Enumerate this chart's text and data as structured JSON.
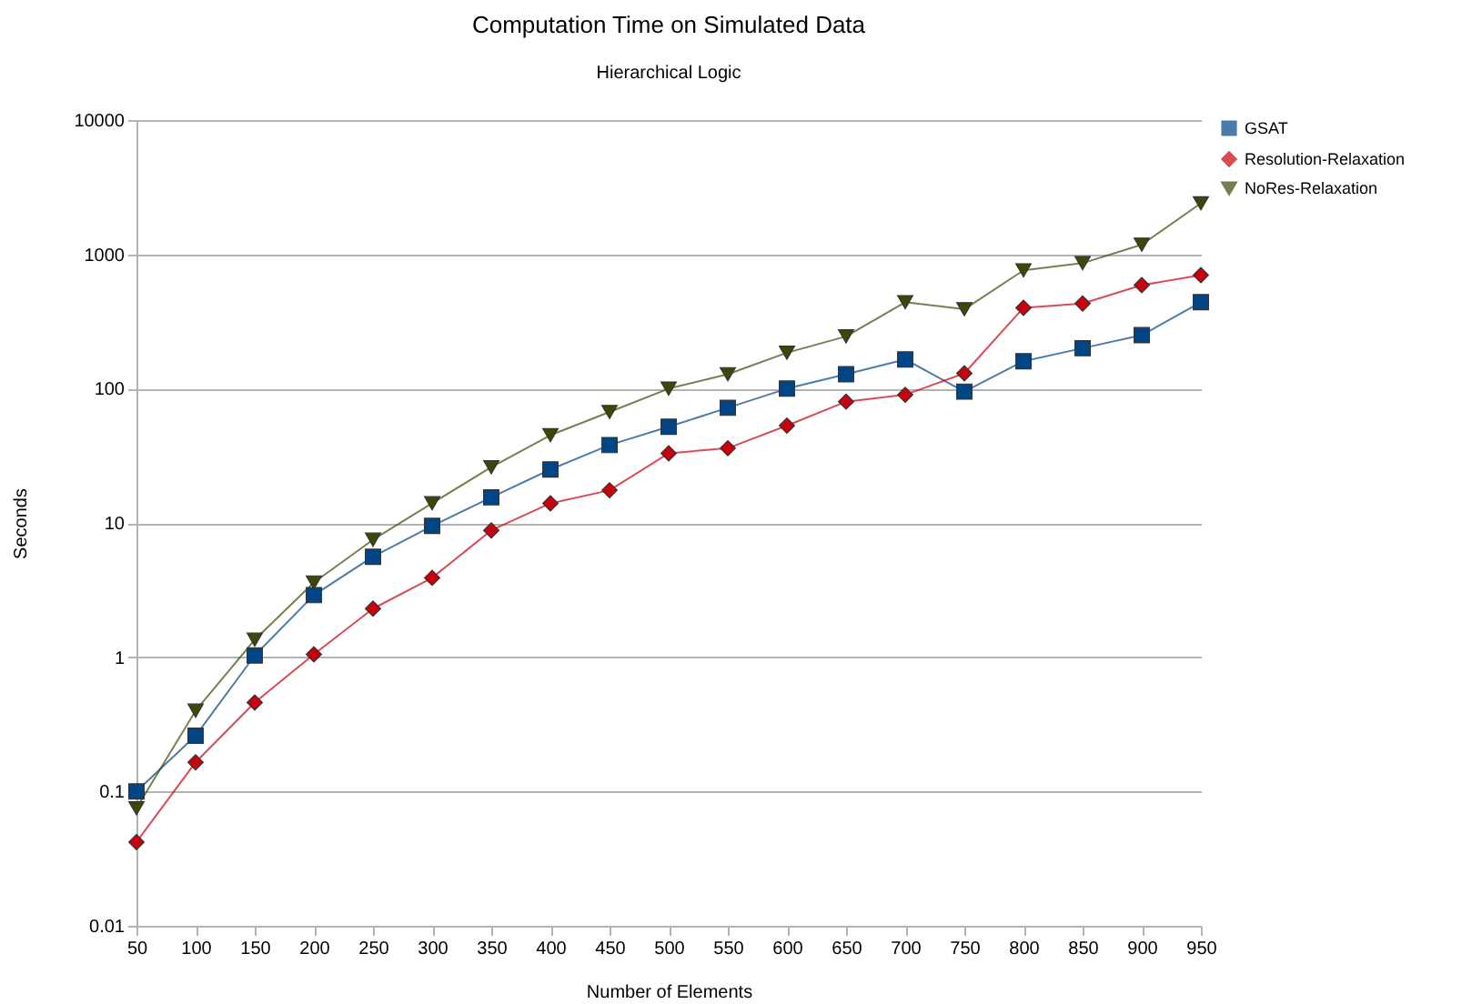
{
  "chart_data": {
    "type": "line",
    "title": "Computation Time on Simulated Data",
    "subtitle": "Hierarchical Logic",
    "xlabel": "Number of Elements",
    "ylabel": "Seconds",
    "categories": [
      "50",
      "100",
      "150",
      "200",
      "250",
      "300",
      "350",
      "400",
      "450",
      "500",
      "550",
      "600",
      "650",
      "700",
      "750",
      "800",
      "850",
      "900",
      "950"
    ],
    "series": [
      {
        "name": "GSAT",
        "color": "#004586",
        "marker": "square",
        "values": [
          0.1,
          0.26,
          1.03,
          2.9,
          5.6,
          9.5,
          15.5,
          25,
          38,
          52,
          72,
          100,
          128,
          165,
          95,
          160,
          200,
          250,
          440
        ]
      },
      {
        "name": "Resolution-Relaxation",
        "color": "#c9000d",
        "marker": "diamond",
        "values": [
          0.042,
          0.165,
          0.46,
          1.05,
          2.3,
          3.9,
          8.8,
          14,
          17.5,
          33,
          36,
          53,
          80,
          90,
          130,
          400,
          430,
          590,
          700
        ]
      },
      {
        "name": "NoRes-Relaxation",
        "color": "#3a4a06",
        "marker": "triangle",
        "values": [
          0.075,
          0.4,
          1.35,
          3.6,
          7.5,
          14,
          26,
          45,
          67,
          100,
          128,
          185,
          245,
          440,
          390,
          760,
          860,
          1180,
          2400
        ]
      }
    ],
    "log": true,
    "ylim": [
      0.01,
      10000
    ],
    "yticks": [
      0.01,
      0.1,
      1,
      10,
      100,
      1000,
      10000
    ],
    "grid": "y",
    "legend": "right",
    "line_style": "solid"
  }
}
